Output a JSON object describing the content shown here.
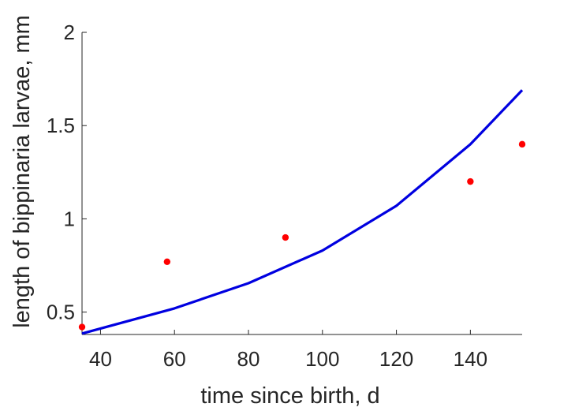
{
  "chart_data": {
    "type": "scatter",
    "title": "",
    "xlabel": "time since birth, d",
    "ylabel": "length of bippinaria larvae, mm",
    "xlim": [
      35,
      154
    ],
    "ylim": [
      0.38,
      2
    ],
    "xticks": [
      40,
      60,
      80,
      100,
      120,
      140
    ],
    "xtick_labels": [
      "40",
      "60",
      "80",
      "100",
      "120",
      "140"
    ],
    "yticks": [
      0.5,
      1,
      1.5,
      2
    ],
    "ytick_labels": [
      "0.5",
      "1",
      "1.5",
      "2"
    ],
    "grid": false,
    "legend": "none",
    "series": [
      {
        "kind": "scatter",
        "color": "#ff0000",
        "x": [
          35,
          58,
          90,
          140,
          154
        ],
        "y": [
          0.42,
          0.77,
          0.9,
          1.2,
          1.4
        ]
      },
      {
        "kind": "line",
        "color": "#0000e0",
        "x": [
          35,
          60,
          80,
          100,
          120,
          140,
          154
        ],
        "y": [
          0.385,
          0.52,
          0.655,
          0.83,
          1.07,
          1.4,
          1.69
        ]
      }
    ]
  }
}
